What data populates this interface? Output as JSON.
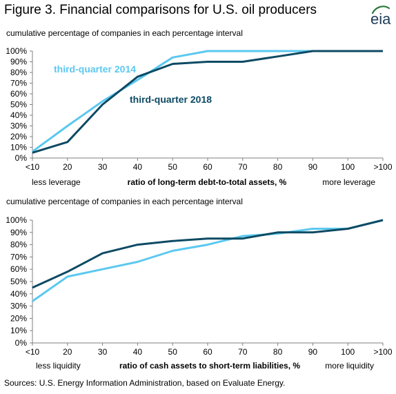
{
  "figure": {
    "title": "Figure 3. Financial comparisons for U.S. oil producers",
    "logo_text": "eia",
    "source": "Sources: U.S. Energy Information Administration, based on Evaluate Energy."
  },
  "colors": {
    "light_blue": "#5bc8f0",
    "dark_teal": "#0d4a63",
    "axis": "#7f7f7f"
  },
  "chart_data": [
    {
      "type": "line",
      "title": "cumulative percentage of companies in each percentage interval",
      "xlabel": "ratio of long-term debt-to-total assets, %",
      "xlabel_left": "less leverage",
      "xlabel_right": "more leverage",
      "categories": [
        "<10",
        "20",
        "30",
        "40",
        "50",
        "60",
        "70",
        "80",
        "90",
        "100",
        ">100"
      ],
      "yticks": [
        "0%",
        "10%",
        "20%",
        "30%",
        "40%",
        "50%",
        "60%",
        "70%",
        "80%",
        "90%",
        "100%"
      ],
      "ylim": [
        0,
        100
      ],
      "grid": false,
      "series": [
        {
          "name": "third-quarter 2014",
          "color": "#5bc8f0",
          "values": [
            6,
            30,
            53,
            73,
            94,
            100,
            100,
            100,
            100,
            100,
            100
          ]
        },
        {
          "name": "third-quarter 2018",
          "color": "#0d4a63",
          "values": [
            5,
            15,
            50,
            76,
            88,
            90,
            90,
            95,
            100,
            100,
            100
          ]
        }
      ]
    },
    {
      "type": "line",
      "title": "cumulative percentage of companies in each percentage interval",
      "xlabel": "ratio of cash assets to short-term liabilities, %",
      "xlabel_left": "less liquidity",
      "xlabel_right": "more liquidity",
      "categories": [
        "<10",
        "20",
        "30",
        "40",
        "50",
        "60",
        "70",
        "80",
        "90",
        "100",
        ">100"
      ],
      "yticks": [
        "0%",
        "10%",
        "20%",
        "30%",
        "40%",
        "50%",
        "60%",
        "70%",
        "80%",
        "90%",
        "100%"
      ],
      "ylim": [
        0,
        100
      ],
      "grid": false,
      "series": [
        {
          "name": "third-quarter 2014",
          "color": "#5bc8f0",
          "values": [
            34,
            54,
            60,
            66,
            75,
            80,
            87,
            89,
            93,
            93,
            100
          ]
        },
        {
          "name": "third-quarter 2018",
          "color": "#0d4a63",
          "values": [
            45,
            58,
            73,
            80,
            83,
            85,
            85,
            90,
            90,
            93,
            100
          ]
        }
      ]
    }
  ]
}
